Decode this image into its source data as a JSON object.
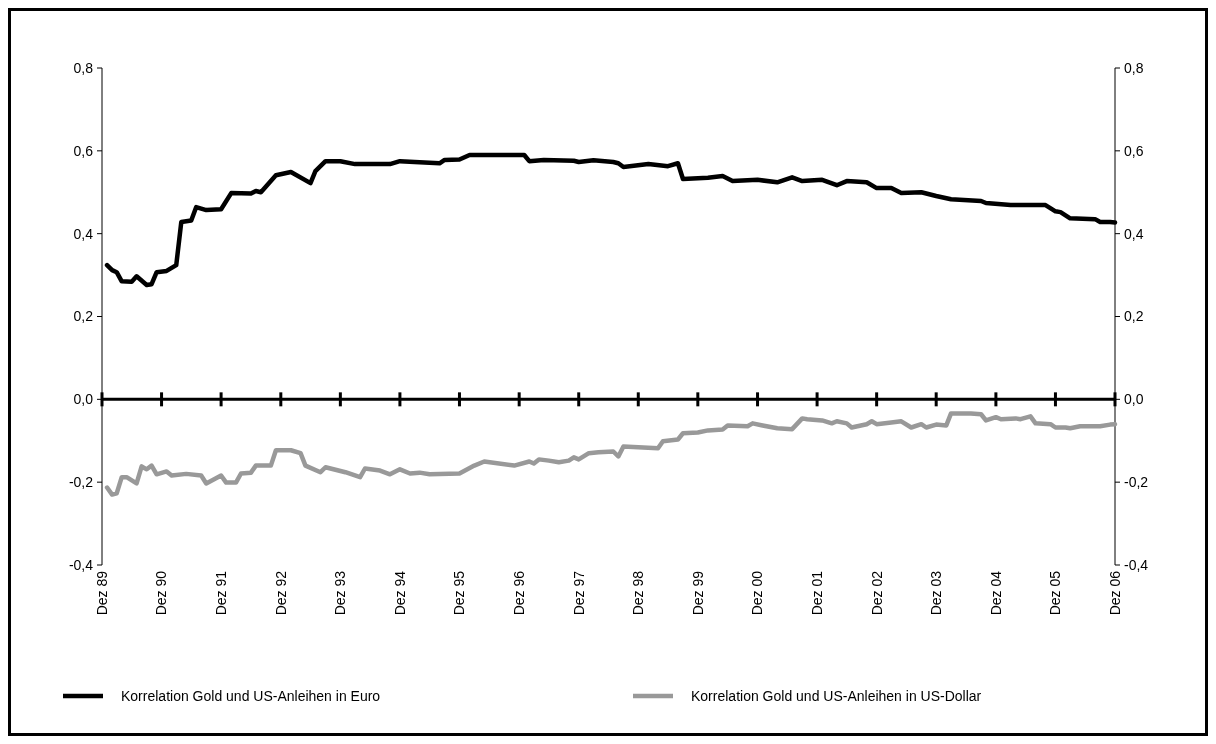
{
  "chart_data": {
    "type": "line",
    "xlim": [
      "1989-12",
      "2006-12"
    ],
    "xticks": [
      {
        "value": "1989-12",
        "label": "Dez 89"
      },
      {
        "value": "1990-12",
        "label": "Dez 90"
      },
      {
        "value": "1991-12",
        "label": "Dez 91"
      },
      {
        "value": "1992-12",
        "label": "Dez 92"
      },
      {
        "value": "1993-12",
        "label": "Dez 93"
      },
      {
        "value": "1994-12",
        "label": "Dez 94"
      },
      {
        "value": "1995-12",
        "label": "Dez 95"
      },
      {
        "value": "1996-12",
        "label": "Dez 96"
      },
      {
        "value": "1997-12",
        "label": "Dez 97"
      },
      {
        "value": "1998-12",
        "label": "Dez 98"
      },
      {
        "value": "1999-12",
        "label": "Dez 99"
      },
      {
        "value": "2000-12",
        "label": "Dez 00"
      },
      {
        "value": "2001-12",
        "label": "Dez 01"
      },
      {
        "value": "2002-12",
        "label": "Dez 02"
      },
      {
        "value": "2003-12",
        "label": "Dez 03"
      },
      {
        "value": "2004-12",
        "label": "Dez 04"
      },
      {
        "value": "2005-12",
        "label": "Dez 05"
      },
      {
        "value": "2006-12",
        "label": "Dez 06"
      }
    ],
    "ylim": [
      -0.4,
      0.8
    ],
    "yticks": [
      {
        "value": -0.4,
        "label": "-0,4"
      },
      {
        "value": -0.2,
        "label": "-0,2"
      },
      {
        "value": 0,
        "label": "0,0"
      },
      {
        "value": 0.2,
        "label": "0,2"
      },
      {
        "value": 0.4,
        "label": "0,4"
      },
      {
        "value": 0.6,
        "label": "0,6"
      },
      {
        "value": 0.8,
        "label": "0,8"
      }
    ],
    "y2lim": [
      -0.4,
      0.8
    ],
    "y2ticks": [
      {
        "value": -0.4,
        "label": "-0,4"
      },
      {
        "value": -0.2,
        "label": "-0,2"
      },
      {
        "value": 0,
        "label": "0,0"
      },
      {
        "value": 0.2,
        "label": "0,2"
      },
      {
        "value": 0.4,
        "label": "0,4"
      },
      {
        "value": 0.6,
        "label": "0,6"
      },
      {
        "value": 0.8,
        "label": "0,8"
      }
    ],
    "grid": false,
    "ref_lines": [
      {
        "axis": "y",
        "value": 0,
        "color": "#000000"
      }
    ],
    "legend": "bottom",
    "line_style": "solid",
    "marker": "none",
    "series": [
      {
        "name": "Korrelation Gold und US-Anleihen in Euro",
        "color": "#000000",
        "x": [
          "1990-01",
          "1990-02",
          "1990-03",
          "1990-04",
          "1990-06",
          "1990-07",
          "1990-09",
          "1990-10",
          "1990-11",
          "1991-01",
          "1991-03",
          "1991-04",
          "1991-06",
          "1991-07",
          "1991-09",
          "1991-12",
          "1992-02",
          "1992-06",
          "1992-07",
          "1992-08",
          "1992-11",
          "1993-02",
          "1993-06",
          "1993-07",
          "1993-09",
          "1993-12",
          "1994-03",
          "1994-10",
          "1994-12",
          "1995-03",
          "1995-08",
          "1995-09",
          "1995-12",
          "1996-02",
          "1997-01",
          "1997-02",
          "1997-05",
          "1997-11",
          "1997-12",
          "1998-03",
          "1998-07",
          "1998-08",
          "1998-09",
          "1999-02",
          "1999-06",
          "1999-08",
          "1999-09",
          "2000-02",
          "2000-05",
          "2000-07",
          "2000-12",
          "2001-04",
          "2001-07",
          "2001-09",
          "2002-01",
          "2002-04",
          "2002-06",
          "2002-10",
          "2002-12",
          "2003-03",
          "2003-05",
          "2003-09",
          "2003-12",
          "2004-03",
          "2004-09",
          "2004-10",
          "2005-03",
          "2005-10",
          "2005-12",
          "2006-01",
          "2006-03",
          "2006-08",
          "2006-09",
          "2006-11",
          "2006-12"
        ],
        "values": [
          0.324,
          0.312,
          0.307,
          0.285,
          0.284,
          0.297,
          0.276,
          0.278,
          0.307,
          0.31,
          0.324,
          0.428,
          0.432,
          0.464,
          0.457,
          0.459,
          0.498,
          0.497,
          0.503,
          0.5,
          0.541,
          0.549,
          0.522,
          0.551,
          0.575,
          0.575,
          0.568,
          0.568,
          0.575,
          0.573,
          0.57,
          0.578,
          0.579,
          0.59,
          0.59,
          0.575,
          0.578,
          0.576,
          0.573,
          0.577,
          0.573,
          0.57,
          0.561,
          0.568,
          0.563,
          0.57,
          0.532,
          0.535,
          0.539,
          0.527,
          0.53,
          0.524,
          0.536,
          0.527,
          0.53,
          0.517,
          0.527,
          0.524,
          0.51,
          0.51,
          0.498,
          0.5,
          0.491,
          0.483,
          0.479,
          0.474,
          0.469,
          0.469,
          0.454,
          0.452,
          0.437,
          0.435,
          0.428,
          0.428,
          0.427
        ]
      },
      {
        "name": "Korrelation Gold und US-Anleihen in US-Dollar",
        "color": "#999999",
        "x": [
          "1990-01",
          "1990-02",
          "1990-03",
          "1990-04",
          "1990-05",
          "1990-07",
          "1990-08",
          "1990-09",
          "1990-10",
          "1990-11",
          "1991-01",
          "1991-02",
          "1991-05",
          "1991-08",
          "1991-09",
          "1991-12",
          "1992-01",
          "1992-03",
          "1992-04",
          "1992-06",
          "1992-07",
          "1992-10",
          "1992-11",
          "1993-02",
          "1993-04",
          "1993-05",
          "1993-08",
          "1993-09",
          "1994-01",
          "1994-04",
          "1994-05",
          "1994-08",
          "1994-10",
          "1994-12",
          "1995-02",
          "1995-04",
          "1995-06",
          "1995-12",
          "1996-03",
          "1996-05",
          "1996-11",
          "1997-02",
          "1997-03",
          "1997-04",
          "1997-06",
          "1997-08",
          "1997-10",
          "1997-11",
          "1997-12",
          "1998-02",
          "1998-04",
          "1998-07",
          "1998-08",
          "1998-09",
          "1999-04",
          "1999-05",
          "1999-08",
          "1999-09",
          "1999-12",
          "2000-02",
          "2000-05",
          "2000-06",
          "2000-10",
          "2000-11",
          "2001-01",
          "2001-04",
          "2001-07",
          "2001-09",
          "2001-10",
          "2002-01",
          "2002-03",
          "2002-04",
          "2002-06",
          "2002-07",
          "2002-10",
          "2002-11",
          "2002-12",
          "2003-03",
          "2003-05",
          "2003-07",
          "2003-09",
          "2003-10",
          "2003-12",
          "2004-02",
          "2004-03",
          "2004-07",
          "2004-09",
          "2004-10",
          "2004-12",
          "2005-01",
          "2005-04",
          "2005-05",
          "2005-07",
          "2005-08",
          "2005-11",
          "2005-12",
          "2006-02",
          "2006-03",
          "2006-05",
          "2006-09",
          "2006-11",
          "2006-12"
        ],
        "values": [
          -0.213,
          -0.23,
          -0.227,
          -0.188,
          -0.188,
          -0.203,
          -0.162,
          -0.169,
          -0.16,
          -0.181,
          -0.174,
          -0.184,
          -0.18,
          -0.184,
          -0.203,
          -0.184,
          -0.201,
          -0.201,
          -0.179,
          -0.177,
          -0.16,
          -0.16,
          -0.123,
          -0.123,
          -0.13,
          -0.16,
          -0.176,
          -0.164,
          -0.176,
          -0.188,
          -0.167,
          -0.172,
          -0.181,
          -0.169,
          -0.179,
          -0.177,
          -0.181,
          -0.179,
          -0.16,
          -0.15,
          -0.16,
          -0.15,
          -0.155,
          -0.145,
          -0.148,
          -0.152,
          -0.148,
          -0.14,
          -0.145,
          -0.13,
          -0.128,
          -0.126,
          -0.138,
          -0.114,
          -0.118,
          -0.101,
          -0.097,
          -0.082,
          -0.08,
          -0.075,
          -0.073,
          -0.063,
          -0.065,
          -0.058,
          -0.063,
          -0.07,
          -0.072,
          -0.046,
          -0.048,
          -0.051,
          -0.058,
          -0.053,
          -0.058,
          -0.068,
          -0.06,
          -0.053,
          -0.06,
          -0.056,
          -0.053,
          -0.068,
          -0.06,
          -0.068,
          -0.061,
          -0.063,
          -0.034,
          -0.034,
          -0.036,
          -0.051,
          -0.043,
          -0.048,
          -0.046,
          -0.048,
          -0.041,
          -0.058,
          -0.06,
          -0.068,
          -0.068,
          -0.07,
          -0.065,
          -0.065,
          -0.061,
          -0.06
        ]
      }
    ]
  }
}
